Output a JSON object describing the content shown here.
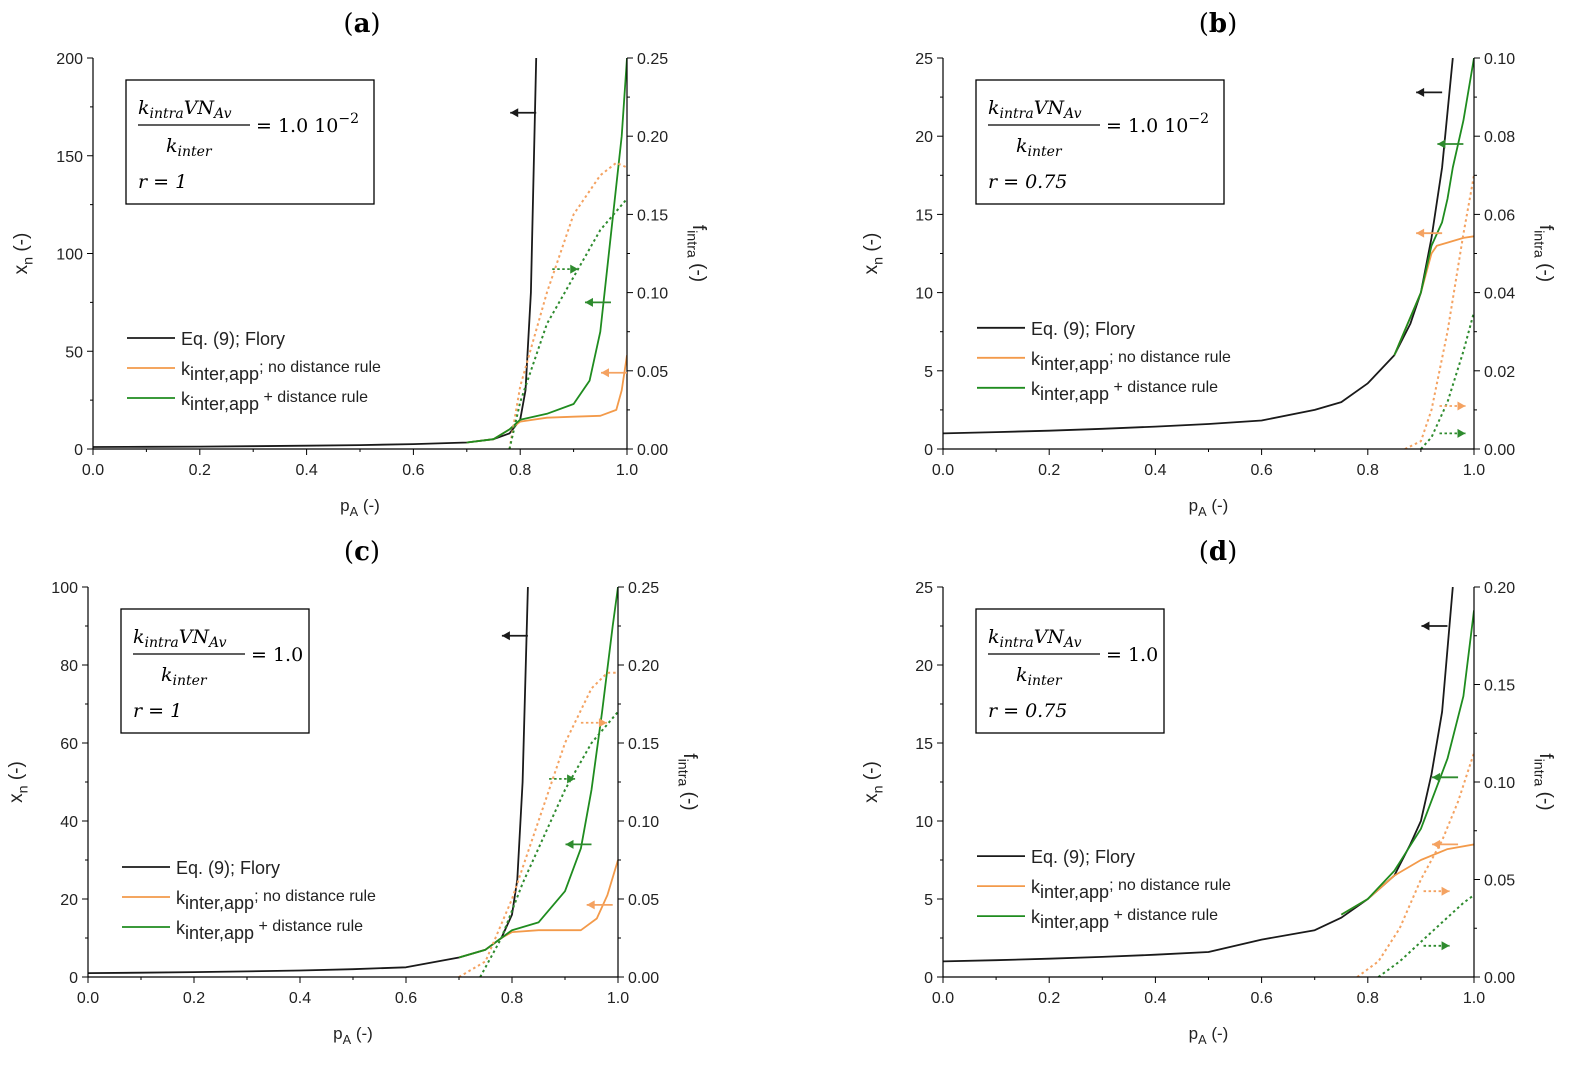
{
  "colors": {
    "flory": "#1a1a1a",
    "no_rule": "#f4a261",
    "no_rule_line": "#f39a4a",
    "rule": "#2e8b2e",
    "rule_line": "#1f8c1f"
  },
  "chart_data": [
    {
      "type": "line",
      "panel_label": "a",
      "xlabel": "pA (-)",
      "xlabel_main": "p",
      "xlabel_sub": "A",
      "xlabel_unit": " (-)",
      "ylabel_main": "x",
      "ylabel_sub": "n",
      "ylabel_unit": " (-)",
      "y2label_main": "f",
      "y2label_sub": "intra",
      "y2label_unit": " (-)",
      "xlim": [
        0,
        1
      ],
      "ylim": [
        0,
        200
      ],
      "y2lim": [
        0,
        0.25
      ],
      "xticks": [
        "0.0",
        "0.2",
        "0.4",
        "0.6",
        "0.8",
        "1.0"
      ],
      "yticks": [
        "0",
        "50",
        "100",
        "150",
        "200"
      ],
      "y2ticks": [
        "0.00",
        "0.05",
        "0.10",
        "0.15",
        "0.20",
        "0.25"
      ],
      "annotation": {
        "ratio_value": "= 1.0 10",
        "ratio_exp": "−2",
        "r_text": "r = 1"
      },
      "legend": [
        "Eq. (9); Flory",
        "kinter,app; no distance rule",
        "kinter,app + distance rule"
      ],
      "series": [
        {
          "name": "Eq. (9); Flory",
          "axis": "left",
          "style": "solid",
          "color": "flory",
          "x": [
            0,
            0.1,
            0.2,
            0.3,
            0.4,
            0.5,
            0.6,
            0.7,
            0.75,
            0.78,
            0.8,
            0.81,
            0.82,
            0.83
          ],
          "y": [
            1,
            1.1,
            1.25,
            1.43,
            1.67,
            2,
            2.5,
            3.33,
            5,
            8,
            15,
            30,
            80,
            200
          ]
        },
        {
          "name": "kinter,app; no distance rule",
          "axis": "left",
          "style": "solid",
          "color": "no_rule",
          "x": [
            0.7,
            0.75,
            0.78,
            0.8,
            0.85,
            0.9,
            0.95,
            0.98,
            0.99,
            1.0
          ],
          "y": [
            3.33,
            5,
            10,
            14,
            16,
            16.5,
            17,
            20,
            30,
            48
          ]
        },
        {
          "name": "kinter,app + distance rule",
          "axis": "left",
          "style": "solid",
          "color": "rule",
          "x": [
            0.7,
            0.75,
            0.78,
            0.8,
            0.85,
            0.9,
            0.93,
            0.95,
            0.97,
            0.99,
            1.0
          ],
          "y": [
            3.33,
            5,
            10,
            15,
            18,
            23,
            35,
            60,
            110,
            160,
            200
          ]
        },
        {
          "name": "no distance rule f_intra",
          "axis": "right",
          "style": "dotted",
          "color": "no_rule",
          "x": [
            0.78,
            0.8,
            0.85,
            0.9,
            0.95,
            0.98,
            1.0
          ],
          "y": [
            0,
            0.04,
            0.1,
            0.15,
            0.175,
            0.183,
            0.18
          ]
        },
        {
          "name": "distance rule f_intra",
          "axis": "right",
          "style": "dotted",
          "color": "rule",
          "x": [
            0.78,
            0.8,
            0.85,
            0.9,
            0.95,
            1.0
          ],
          "y": [
            0,
            0.03,
            0.08,
            0.11,
            0.14,
            0.16
          ]
        }
      ],
      "arrows": [
        {
          "x": 0.83,
          "y": 172,
          "axis": "left",
          "dir": "left",
          "color": "flory",
          "style": "solid"
        },
        {
          "x": 0.93,
          "y": 172,
          "axis": "right",
          "dir": "right",
          "color": "no_rule",
          "style": "dotted"
        },
        {
          "x": 0.86,
          "y": 0.115,
          "axis": "right",
          "dir": "right",
          "color": "rule",
          "style": "dotted"
        },
        {
          "x": 0.97,
          "y": 75,
          "axis": "left",
          "dir": "left",
          "color": "rule",
          "style": "solid"
        },
        {
          "x": 1.0,
          "y": 39,
          "axis": "left",
          "dir": "left",
          "color": "no_rule",
          "style": "solid"
        }
      ]
    },
    {
      "type": "line",
      "panel_label": "b",
      "xlabel_main": "p",
      "xlabel_sub": "A",
      "xlabel_unit": " (-)",
      "ylabel_main": "x",
      "ylabel_sub": "n",
      "ylabel_unit": " (-)",
      "y2label_main": "f",
      "y2label_sub": "intra",
      "y2label_unit": " (-)",
      "xlim": [
        0,
        1
      ],
      "ylim": [
        0,
        25
      ],
      "y2lim": [
        0,
        0.1
      ],
      "xticks": [
        "0.0",
        "0.2",
        "0.4",
        "0.6",
        "0.8",
        "1.0"
      ],
      "yticks": [
        "0",
        "5",
        "10",
        "15",
        "20",
        "25"
      ],
      "y2ticks": [
        "0.00",
        "0.02",
        "0.04",
        "0.06",
        "0.08",
        "0.10"
      ],
      "annotation": {
        "ratio_value": "= 1.0 10",
        "ratio_exp": "−2",
        "r_text": "r = 0.75"
      },
      "legend": [
        "Eq. (9); Flory",
        "kinter,app; no distance rule",
        "kinter,app + distance rule"
      ],
      "series": [
        {
          "name": "Eq. (9); Flory",
          "axis": "left",
          "style": "solid",
          "color": "flory",
          "x": [
            0,
            0.1,
            0.2,
            0.3,
            0.4,
            0.5,
            0.6,
            0.7,
            0.75,
            0.8,
            0.85,
            0.88,
            0.9,
            0.92,
            0.94,
            0.96
          ],
          "y": [
            1,
            1.08,
            1.17,
            1.29,
            1.43,
            1.6,
            1.82,
            2.5,
            3,
            4.2,
            6,
            8,
            10,
            13.5,
            18,
            25
          ]
        },
        {
          "name": "kinter,app; no distance rule",
          "axis": "left",
          "style": "solid",
          "color": "no_rule",
          "x": [
            0.85,
            0.9,
            0.92,
            0.93,
            0.95,
            0.98,
            1.0
          ],
          "y": [
            6,
            10,
            12.5,
            13,
            13.2,
            13.5,
            13.6
          ]
        },
        {
          "name": "kinter,app + distance rule",
          "axis": "left",
          "style": "solid",
          "color": "rule",
          "x": [
            0.85,
            0.9,
            0.92,
            0.94,
            0.95,
            0.96,
            0.98,
            1.0
          ],
          "y": [
            6,
            10,
            13,
            14.5,
            16,
            18,
            21,
            25
          ]
        },
        {
          "name": "no distance rule f_intra",
          "axis": "right",
          "style": "dotted",
          "color": "no_rule",
          "x": [
            0.87,
            0.9,
            0.92,
            0.95,
            0.98,
            1.0
          ],
          "y": [
            0,
            0.002,
            0.01,
            0.03,
            0.055,
            0.07
          ]
        },
        {
          "name": "distance rule f_intra",
          "axis": "right",
          "style": "dotted",
          "color": "rule",
          "x": [
            0.9,
            0.92,
            0.95,
            0.98,
            1.0
          ],
          "y": [
            0,
            0.003,
            0.012,
            0.025,
            0.035
          ]
        }
      ],
      "arrows": [
        {
          "x": 0.94,
          "y": 22.8,
          "axis": "left",
          "dir": "left",
          "color": "flory",
          "style": "solid"
        },
        {
          "x": 0.98,
          "y": 19.5,
          "axis": "left",
          "dir": "left",
          "color": "rule",
          "style": "solid"
        },
        {
          "x": 0.94,
          "y": 13.8,
          "axis": "left",
          "dir": "left",
          "color": "no_rule",
          "style": "solid"
        },
        {
          "x": 0.935,
          "y": 0.011,
          "axis": "right",
          "dir": "right",
          "color": "no_rule",
          "style": "dotted"
        },
        {
          "x": 0.935,
          "y": 0.004,
          "axis": "right",
          "dir": "right",
          "color": "rule",
          "style": "dotted"
        }
      ]
    },
    {
      "type": "line",
      "panel_label": "c",
      "xlabel_main": "p",
      "xlabel_sub": "A",
      "xlabel_unit": " (-)",
      "ylabel_main": "x",
      "ylabel_sub": "n",
      "ylabel_unit": " (-)",
      "y2label_main": "f",
      "y2label_sub": "intra",
      "y2label_unit": " (-)",
      "xlim": [
        0,
        1
      ],
      "ylim": [
        0,
        100
      ],
      "y2lim": [
        0,
        0.25
      ],
      "xticks": [
        "0.0",
        "0.2",
        "0.4",
        "0.6",
        "0.8",
        "1.0"
      ],
      "yticks": [
        "0",
        "20",
        "40",
        "60",
        "80",
        "100"
      ],
      "y2ticks": [
        "0.00",
        "0.05",
        "0.10",
        "0.15",
        "0.20",
        "0.25"
      ],
      "annotation": {
        "ratio_value": "= 1.0",
        "ratio_exp": "",
        "r_text": "r = 1"
      },
      "legend": [
        "Eq. (9); Flory",
        "kinter,app; no distance rule",
        "kinter,app + distance rule"
      ],
      "series": [
        {
          "name": "Eq. (9); Flory",
          "axis": "left",
          "style": "solid",
          "color": "flory",
          "x": [
            0,
            0.1,
            0.2,
            0.3,
            0.4,
            0.5,
            0.6,
            0.7,
            0.75,
            0.78,
            0.8,
            0.81,
            0.82,
            0.83
          ],
          "y": [
            1,
            1.1,
            1.25,
            1.43,
            1.67,
            2,
            2.5,
            5,
            7,
            10,
            16,
            25,
            50,
            100
          ]
        },
        {
          "name": "kinter,app; no distance rule",
          "axis": "left",
          "style": "solid",
          "color": "no_rule",
          "x": [
            0.7,
            0.75,
            0.78,
            0.8,
            0.85,
            0.9,
            0.93,
            0.96,
            0.98,
            1.0
          ],
          "y": [
            5,
            7,
            10,
            11.5,
            12,
            12,
            12,
            15,
            21,
            30
          ]
        },
        {
          "name": "kinter,app + distance rule",
          "axis": "left",
          "style": "solid",
          "color": "rule",
          "x": [
            0.7,
            0.75,
            0.78,
            0.8,
            0.85,
            0.9,
            0.93,
            0.95,
            0.97,
            0.99,
            1.0
          ],
          "y": [
            5,
            7,
            10,
            12,
            14,
            22,
            33,
            48,
            68,
            90,
            100
          ]
        },
        {
          "name": "no distance rule f_intra",
          "axis": "right",
          "style": "dotted",
          "color": "no_rule",
          "x": [
            0.7,
            0.75,
            0.8,
            0.85,
            0.9,
            0.95,
            0.98,
            1.0
          ],
          "y": [
            0,
            0.01,
            0.05,
            0.1,
            0.15,
            0.185,
            0.195,
            0.195
          ]
        },
        {
          "name": "distance rule f_intra",
          "axis": "right",
          "style": "dotted",
          "color": "rule",
          "x": [
            0.74,
            0.78,
            0.82,
            0.86,
            0.9,
            0.95,
            1.0
          ],
          "y": [
            0,
            0.025,
            0.06,
            0.09,
            0.12,
            0.15,
            0.17
          ]
        }
      ],
      "arrows": [
        {
          "x": 0.83,
          "y": 87.5,
          "axis": "left",
          "dir": "left",
          "color": "flory",
          "style": "solid"
        },
        {
          "x": 0.93,
          "y": 0.163,
          "axis": "right",
          "dir": "right",
          "color": "no_rule",
          "style": "dotted"
        },
        {
          "x": 0.87,
          "y": 0.127,
          "axis": "right",
          "dir": "right",
          "color": "rule",
          "style": "dotted"
        },
        {
          "x": 0.95,
          "y": 34,
          "axis": "left",
          "dir": "left",
          "color": "rule",
          "style": "solid"
        },
        {
          "x": 0.99,
          "y": 18.5,
          "axis": "left",
          "dir": "left",
          "color": "no_rule",
          "style": "solid"
        }
      ]
    },
    {
      "type": "line",
      "panel_label": "d",
      "xlabel_main": "p",
      "xlabel_sub": "A",
      "xlabel_unit": " (-)",
      "ylabel_main": "x",
      "ylabel_sub": "n",
      "ylabel_unit": " (-)",
      "y2label_main": "f",
      "y2label_sub": "intra",
      "y2label_unit": " (-)",
      "xlim": [
        0,
        1
      ],
      "ylim": [
        0,
        25
      ],
      "y2lim": [
        0,
        0.2
      ],
      "xticks": [
        "0.0",
        "0.2",
        "0.4",
        "0.6",
        "0.8",
        "1.0"
      ],
      "yticks": [
        "0",
        "5",
        "10",
        "15",
        "20",
        "25"
      ],
      "y2ticks": [
        "0.00",
        "0.05",
        "0.10",
        "0.15",
        "0.20"
      ],
      "annotation": {
        "ratio_value": "= 1.0",
        "ratio_exp": "",
        "r_text": "r = 0.75"
      },
      "legend": [
        "Eq. (9); Flory",
        "kinter,app; no distance rule",
        "kinter,app + distance rule"
      ],
      "series": [
        {
          "name": "Eq. (9); Flory",
          "axis": "left",
          "style": "solid",
          "color": "flory",
          "x": [
            0,
            0.1,
            0.2,
            0.3,
            0.4,
            0.5,
            0.6,
            0.7,
            0.75,
            0.8,
            0.85,
            0.88,
            0.9,
            0.92,
            0.94,
            0.96
          ],
          "y": [
            1,
            1.08,
            1.17,
            1.29,
            1.43,
            1.6,
            2.4,
            3,
            3.8,
            5,
            6.5,
            8.5,
            10,
            13,
            17,
            25
          ]
        },
        {
          "name": "kinter,app; no distance rule",
          "axis": "left",
          "style": "solid",
          "color": "no_rule",
          "x": [
            0.75,
            0.8,
            0.85,
            0.9,
            0.95,
            1.0
          ],
          "y": [
            4,
            5,
            6.5,
            7.5,
            8.2,
            8.5
          ]
        },
        {
          "name": "kinter,app + distance rule",
          "axis": "left",
          "style": "solid",
          "color": "rule",
          "x": [
            0.75,
            0.8,
            0.85,
            0.9,
            0.95,
            0.98,
            1.0
          ],
          "y": [
            4,
            5,
            6.8,
            9.5,
            14,
            18,
            23.5
          ]
        },
        {
          "name": "no distance rule f_intra",
          "axis": "right",
          "style": "dotted",
          "color": "no_rule",
          "x": [
            0.78,
            0.82,
            0.86,
            0.9,
            0.94,
            0.97,
            1.0
          ],
          "y": [
            0,
            0.008,
            0.025,
            0.05,
            0.07,
            0.09,
            0.115
          ]
        },
        {
          "name": "distance rule f_intra",
          "axis": "right",
          "style": "dotted",
          "color": "rule",
          "x": [
            0.82,
            0.86,
            0.9,
            0.94,
            0.98,
            1.0
          ],
          "y": [
            0,
            0.008,
            0.018,
            0.028,
            0.038,
            0.042
          ]
        }
      ],
      "arrows": [
        {
          "x": 0.95,
          "y": 22.5,
          "axis": "left",
          "dir": "left",
          "color": "flory",
          "style": "solid"
        },
        {
          "x": 0.97,
          "y": 12.8,
          "axis": "left",
          "dir": "left",
          "color": "rule",
          "style": "solid"
        },
        {
          "x": 0.97,
          "y": 8.5,
          "axis": "left",
          "dir": "left",
          "color": "no_rule",
          "style": "solid"
        },
        {
          "x": 0.905,
          "y": 0.044,
          "axis": "right",
          "dir": "right",
          "color": "no_rule",
          "style": "dotted"
        },
        {
          "x": 0.905,
          "y": 0.016,
          "axis": "right",
          "dir": "right",
          "color": "rule",
          "style": "dotted"
        }
      ]
    }
  ]
}
